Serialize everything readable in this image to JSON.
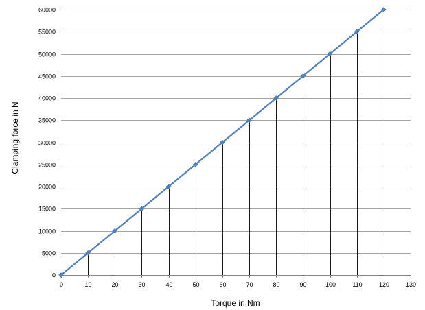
{
  "chart_data": {
    "type": "line",
    "title": "",
    "xlabel": "Torque in Nm",
    "ylabel": "Clamping force in N",
    "x_ticks": [
      "0",
      "10",
      "20",
      "30",
      "40",
      "50",
      "60",
      "70",
      "80",
      "90",
      "100",
      "110",
      "120",
      "130"
    ],
    "y_ticks": [
      "0",
      "5000",
      "10000",
      "15000",
      "20000",
      "25000",
      "30000",
      "35000",
      "40000",
      "45000",
      "50000",
      "55000",
      "60000"
    ],
    "xlim": [
      0,
      130
    ],
    "ylim": [
      0,
      60000
    ],
    "grid": {
      "horizontal": true,
      "vertical": false
    },
    "drop_lines": true,
    "legend": "none",
    "series": [
      {
        "x": [
          0,
          10,
          20,
          30,
          40,
          50,
          60,
          70,
          80,
          90,
          100,
          110,
          120
        ],
        "y": [
          0,
          5000,
          10000,
          15000,
          20000,
          25000,
          30000,
          35000,
          40000,
          45000,
          50000,
          55000,
          60000
        ],
        "color": "#4f81bd",
        "marker": "diamond"
      }
    ],
    "colors": {
      "gridline": "#868686",
      "drop_line": "#000000",
      "axis": "#868686"
    }
  }
}
